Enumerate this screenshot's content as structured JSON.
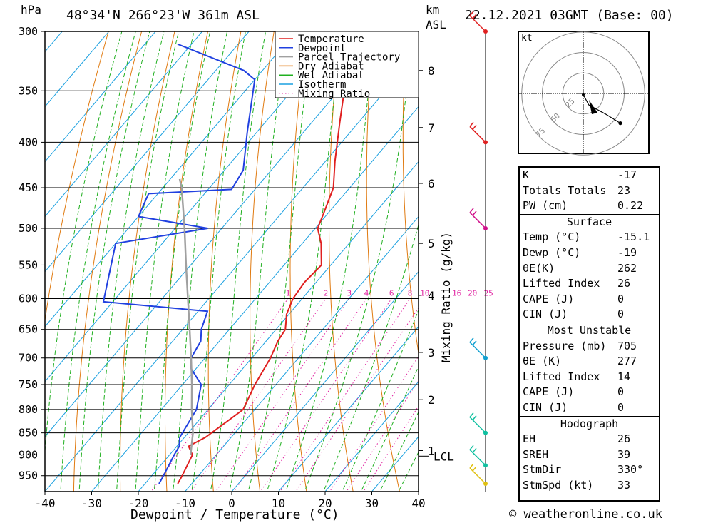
{
  "header": {
    "pressure_unit": "hPa",
    "location": "48°34'N  266°23'W  361m  ASL",
    "height_unit_top": "km",
    "height_unit_bottom": "ASL",
    "datetime": "22.12.2021  03GMT  (Base: 00)"
  },
  "chart_data": {
    "type": "skew-t",
    "xlabel": "Dewpoint / Temperature (°C)",
    "ylabel_left": "hPa",
    "ylabel_right": "Mixing Ratio (g/kg)",
    "x_ticks": [
      -40,
      -30,
      -20,
      -10,
      0,
      10,
      20,
      30,
      40
    ],
    "xlim": [
      -40,
      40
    ],
    "pressure_levels": [
      300,
      350,
      400,
      450,
      500,
      550,
      600,
      650,
      700,
      750,
      800,
      850,
      900,
      950
    ],
    "pressure_range": [
      300,
      990
    ],
    "km_ticks": [
      {
        "label": "1",
        "p": 890
      },
      {
        "label": "2",
        "p": 780
      },
      {
        "label": "3",
        "p": 690
      },
      {
        "label": "4",
        "p": 595
      },
      {
        "label": "5",
        "p": 520
      },
      {
        "label": "6",
        "p": 445
      },
      {
        "label": "7",
        "p": 385
      },
      {
        "label": "8",
        "p": 332
      }
    ],
    "lcl": {
      "label": "LCL",
      "p": 903
    },
    "mixing_ratio_labels": [
      "1",
      "2",
      "3",
      "4",
      "6",
      "8",
      "10",
      "16",
      "20",
      "25"
    ],
    "mixing_ratio_values": [
      1,
      2,
      3,
      4,
      6,
      8,
      10,
      16,
      20,
      25
    ],
    "mixing_ratio_label_p": 600,
    "legend": [
      {
        "name": "Temperature",
        "color": "#e02020",
        "dotted": false
      },
      {
        "name": "Dewpoint",
        "color": "#2040e0",
        "dotted": false
      },
      {
        "name": "Parcel Trajectory",
        "color": "#a0a0a0",
        "dotted": false
      },
      {
        "name": "Dry Adiabat",
        "color": "#e07a10",
        "dotted": false
      },
      {
        "name": "Wet Adiabat",
        "color": "#20b020",
        "dotted": false
      },
      {
        "name": "Isotherm",
        "color": "#1aa0e0",
        "dotted": false
      },
      {
        "name": "Mixing Ratio",
        "color": "#e020a0",
        "dotted": true
      }
    ],
    "series": [
      {
        "name": "Temperature",
        "color": "#e02020",
        "points": [
          {
            "p": 970,
            "t": -13.0
          },
          {
            "p": 950,
            "t": -13.5
          },
          {
            "p": 900,
            "t": -15.1
          },
          {
            "p": 880,
            "t": -17.5
          },
          {
            "p": 860,
            "t": -15.5
          },
          {
            "p": 820,
            "t": -13.5
          },
          {
            "p": 800,
            "t": -12.5
          },
          {
            "p": 750,
            "t": -14.5
          },
          {
            "p": 700,
            "t": -16.0
          },
          {
            "p": 670,
            "t": -17.5
          },
          {
            "p": 650,
            "t": -18.0
          },
          {
            "p": 625,
            "t": -20.5
          },
          {
            "p": 600,
            "t": -22.0
          },
          {
            "p": 575,
            "t": -22.5
          },
          {
            "p": 550,
            "t": -22.0
          },
          {
            "p": 520,
            "t": -26.0
          },
          {
            "p": 500,
            "t": -29.5
          },
          {
            "p": 480,
            "t": -31.0
          },
          {
            "p": 450,
            "t": -33.5
          },
          {
            "p": 420,
            "t": -38.0
          },
          {
            "p": 380,
            "t": -44.0
          },
          {
            "p": 340,
            "t": -50.5
          },
          {
            "p": 330,
            "t": -53.5
          },
          {
            "p": 310,
            "t": -55.0
          },
          {
            "p": 300,
            "t": -57.5
          }
        ]
      },
      {
        "name": "Dewpoint",
        "color": "#2040e0",
        "points": [
          {
            "p": 970,
            "t": -17.0
          },
          {
            "p": 950,
            "t": -17.5
          },
          {
            "p": 900,
            "t": -19.0
          },
          {
            "p": 880,
            "t": -19.5
          },
          {
            "p": 860,
            "t": -21.0
          },
          {
            "p": 800,
            "t": -22.5
          },
          {
            "p": 750,
            "t": -26.0
          },
          {
            "p": 720,
            "t": -31.0
          },
          {
            "p": 700,
            "t": -33.0
          },
          {
            "p": 670,
            "t": -34.0
          },
          {
            "p": 650,
            "t": -36.0
          },
          {
            "p": 620,
            "t": -38.0
          },
          {
            "p": 605,
            "t": -62.0
          },
          {
            "p": 520,
            "t": -70.0
          },
          {
            "p": 500,
            "t": -53.0
          },
          {
            "p": 485,
            "t": -70.0
          },
          {
            "p": 457,
            "t": -72.0
          },
          {
            "p": 452,
            "t": -55.0
          },
          {
            "p": 430,
            "t": -56.0
          },
          {
            "p": 390,
            "t": -62.0
          },
          {
            "p": 340,
            "t": -70.0
          },
          {
            "p": 332,
            "t": -74.0
          },
          {
            "p": 310,
            "t": -93.0
          }
        ]
      },
      {
        "name": "Parcel Trajectory",
        "color": "#a0a0a0",
        "points": [
          {
            "p": 900,
            "t": -15.5
          },
          {
            "p": 850,
            "t": -19.0
          },
          {
            "p": 800,
            "t": -23.5
          },
          {
            "p": 750,
            "t": -28.0
          },
          {
            "p": 700,
            "t": -33.0
          },
          {
            "p": 650,
            "t": -38.5
          },
          {
            "p": 600,
            "t": -44.5
          },
          {
            "p": 550,
            "t": -51.0
          },
          {
            "p": 500,
            "t": -58.0
          },
          {
            "p": 450,
            "t": -66.0
          },
          {
            "p": 440,
            "t": -68.0
          }
        ]
      }
    ]
  },
  "wind_profile": {
    "barbs": [
      {
        "p": 300,
        "color": "#e02020"
      },
      {
        "p": 400,
        "color": "#e02020"
      },
      {
        "p": 500,
        "color": "#d0108a"
      },
      {
        "p": 700,
        "color": "#10a0d0"
      },
      {
        "p": 850,
        "color": "#10c0a0"
      },
      {
        "p": 925,
        "color": "#10c0a0"
      },
      {
        "p": 970,
        "color": "#e0c010"
      }
    ]
  },
  "hodograph": {
    "unit": "kt",
    "ring_labels": [
      "25",
      "50",
      "75"
    ],
    "trace_u": [
      0,
      3,
      12,
      20
    ],
    "trace_v": [
      -1,
      -10,
      -18,
      -26
    ]
  },
  "indices": {
    "general": [
      {
        "label": "K",
        "value": "-17"
      },
      {
        "label": "Totals Totals",
        "value": "23"
      },
      {
        "label": "PW (cm)",
        "value": "0.22"
      }
    ],
    "surface_title": "Surface",
    "surface": [
      {
        "label": "Temp (°C)",
        "value": "-15.1"
      },
      {
        "label": "Dewp (°C)",
        "value": "-19"
      },
      {
        "label": "θE(K)",
        "value": "262"
      },
      {
        "label": "Lifted Index",
        "value": "26"
      },
      {
        "label": "CAPE (J)",
        "value": "0"
      },
      {
        "label": "CIN (J)",
        "value": "0"
      }
    ],
    "unstable_title": "Most Unstable",
    "unstable": [
      {
        "label": "Pressure (mb)",
        "value": "705"
      },
      {
        "label": "θE (K)",
        "value": "277"
      },
      {
        "label": "Lifted Index",
        "value": "14"
      },
      {
        "label": "CAPE (J)",
        "value": "0"
      },
      {
        "label": "CIN (J)",
        "value": "0"
      }
    ],
    "hodo_title": "Hodograph",
    "hodo": [
      {
        "label": "EH",
        "value": "26"
      },
      {
        "label": "SREH",
        "value": "39"
      },
      {
        "label": "StmDir",
        "value": "330°"
      },
      {
        "label": "StmSpd (kt)",
        "value": "33"
      }
    ]
  },
  "credit": "© weatheronline.co.uk"
}
